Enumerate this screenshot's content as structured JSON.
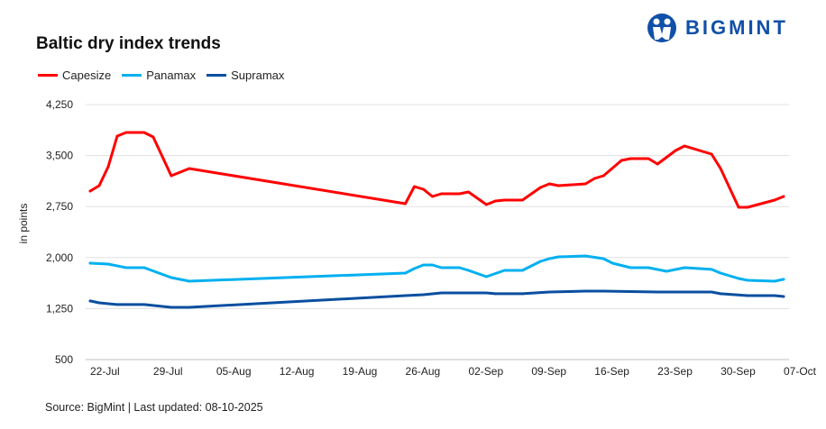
{
  "logo": {
    "text": "BIGMINT"
  },
  "source": "Source: BigMint | Last updated: 08-10-2025",
  "chart_data": {
    "type": "line",
    "title": "Baltic dry index trends",
    "xlabel": "",
    "ylabel": "in points",
    "ylim": [
      500,
      4250
    ],
    "yticks": [
      4250,
      3500,
      2750,
      2000,
      1250,
      500
    ],
    "ytick_labels": [
      "4,250",
      "3,500",
      "2,750",
      "2,000",
      "1,250",
      "500"
    ],
    "xrange": [
      "2025-07-22",
      "2025-10-07"
    ],
    "xticks": [
      "2025-07-22",
      "2025-07-29",
      "2025-08-05",
      "2025-08-12",
      "2025-08-19",
      "2025-08-26",
      "2025-09-02",
      "2025-09-09",
      "2025-09-16",
      "2025-09-23",
      "2025-09-30",
      "2025-10-07"
    ],
    "xtick_labels": [
      "22-Jul",
      "29-Jul",
      "05-Aug",
      "12-Aug",
      "19-Aug",
      "26-Aug",
      "02-Sep",
      "09-Sep",
      "16-Sep",
      "23-Sep",
      "30-Sep",
      "07-Oct"
    ],
    "grid": "horizontal",
    "legend_position": "top-left",
    "series": [
      {
        "name": "Capesize",
        "color": "#ff0000",
        "points": [
          [
            "2025-07-22",
            2978
          ],
          [
            "2025-07-23",
            3058
          ],
          [
            "2025-07-24",
            3336
          ],
          [
            "2025-07-25",
            3786
          ],
          [
            "2025-07-26",
            3839
          ],
          [
            "2025-07-28",
            3839
          ],
          [
            "2025-07-29",
            3773
          ],
          [
            "2025-07-31",
            3203
          ],
          [
            "2025-08-02",
            3309
          ],
          [
            "2025-08-26",
            2792
          ],
          [
            "2025-08-27",
            3044
          ],
          [
            "2025-08-28",
            3005
          ],
          [
            "2025-08-29",
            2899
          ],
          [
            "2025-08-30",
            2938
          ],
          [
            "2025-09-01",
            2938
          ],
          [
            "2025-09-02",
            2965
          ],
          [
            "2025-09-04",
            2779
          ],
          [
            "2025-09-05",
            2832
          ],
          [
            "2025-09-06",
            2845
          ],
          [
            "2025-09-08",
            2845
          ],
          [
            "2025-09-09",
            2938
          ],
          [
            "2025-09-10",
            3031
          ],
          [
            "2025-09-11",
            3084
          ],
          [
            "2025-09-12",
            3058
          ],
          [
            "2025-09-15",
            3084
          ],
          [
            "2025-09-16",
            3164
          ],
          [
            "2025-09-17",
            3203
          ],
          [
            "2025-09-19",
            3429
          ],
          [
            "2025-09-20",
            3455
          ],
          [
            "2025-09-22",
            3455
          ],
          [
            "2025-09-23",
            3376
          ],
          [
            "2025-09-25",
            3574
          ],
          [
            "2025-09-26",
            3641
          ],
          [
            "2025-09-29",
            3521
          ],
          [
            "2025-09-30",
            3309
          ],
          [
            "2025-10-02",
            2740
          ],
          [
            "2025-10-03",
            2740
          ],
          [
            "2025-10-06",
            2845
          ],
          [
            "2025-10-07",
            2899
          ]
        ]
      },
      {
        "name": "Panamax",
        "color": "#00b0f0",
        "points": [
          [
            "2025-07-22",
            1918
          ],
          [
            "2025-07-24",
            1905
          ],
          [
            "2025-07-26",
            1852
          ],
          [
            "2025-07-28",
            1852
          ],
          [
            "2025-07-31",
            1706
          ],
          [
            "2025-08-02",
            1653
          ],
          [
            "2025-08-26",
            1772
          ],
          [
            "2025-08-27",
            1839
          ],
          [
            "2025-08-28",
            1892
          ],
          [
            "2025-08-29",
            1892
          ],
          [
            "2025-08-30",
            1852
          ],
          [
            "2025-09-01",
            1852
          ],
          [
            "2025-09-02",
            1812
          ],
          [
            "2025-09-04",
            1719
          ],
          [
            "2025-09-06",
            1812
          ],
          [
            "2025-09-08",
            1812
          ],
          [
            "2025-09-10",
            1945
          ],
          [
            "2025-09-11",
            1984
          ],
          [
            "2025-09-12",
            2011
          ],
          [
            "2025-09-15",
            2024
          ],
          [
            "2025-09-17",
            1984
          ],
          [
            "2025-09-18",
            1918
          ],
          [
            "2025-09-20",
            1852
          ],
          [
            "2025-09-22",
            1852
          ],
          [
            "2025-09-24",
            1799
          ],
          [
            "2025-09-26",
            1852
          ],
          [
            "2025-09-29",
            1826
          ],
          [
            "2025-09-30",
            1772
          ],
          [
            "2025-10-02",
            1693
          ],
          [
            "2025-10-03",
            1666
          ],
          [
            "2025-10-06",
            1653
          ],
          [
            "2025-10-07",
            1680
          ]
        ]
      },
      {
        "name": "Supramax",
        "color": "#0a4fa0",
        "points": [
          [
            "2025-07-22",
            1362
          ],
          [
            "2025-07-23",
            1335
          ],
          [
            "2025-07-25",
            1309
          ],
          [
            "2025-07-28",
            1309
          ],
          [
            "2025-07-31",
            1269
          ],
          [
            "2025-08-02",
            1269
          ],
          [
            "2025-08-26",
            1441
          ],
          [
            "2025-08-28",
            1454
          ],
          [
            "2025-08-30",
            1481
          ],
          [
            "2025-09-04",
            1481
          ],
          [
            "2025-09-05",
            1468
          ],
          [
            "2025-09-08",
            1468
          ],
          [
            "2025-09-11",
            1494
          ],
          [
            "2025-09-15",
            1507
          ],
          [
            "2025-09-17",
            1507
          ],
          [
            "2025-09-23",
            1494
          ],
          [
            "2025-09-29",
            1494
          ],
          [
            "2025-09-30",
            1468
          ],
          [
            "2025-10-03",
            1441
          ],
          [
            "2025-10-06",
            1441
          ],
          [
            "2025-10-07",
            1428
          ]
        ]
      }
    ]
  }
}
